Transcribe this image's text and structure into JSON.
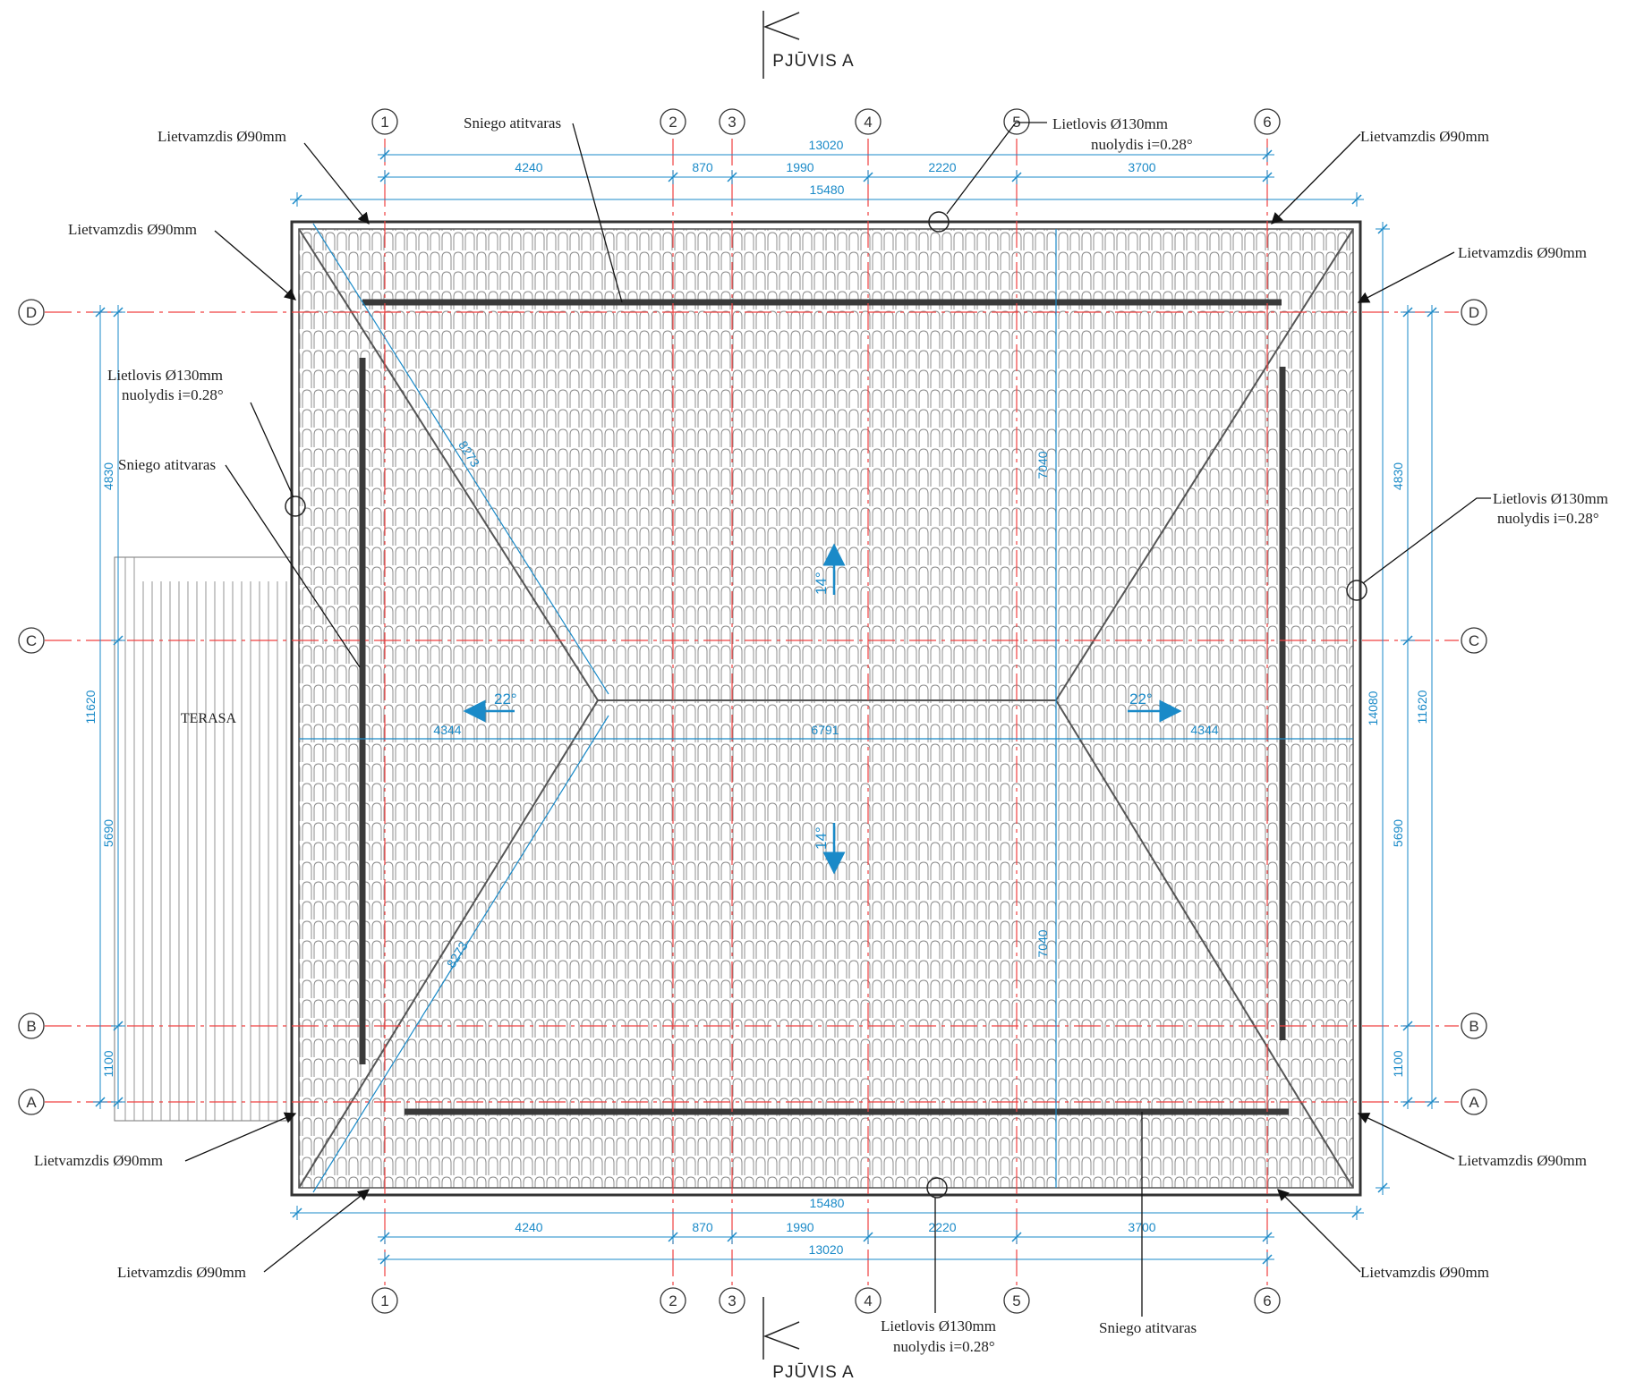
{
  "section_label": "PJŪVIS A",
  "grid_vertical": [
    "1",
    "2",
    "3",
    "4",
    "5",
    "6"
  ],
  "grid_horizontal": [
    "D",
    "C",
    "B",
    "A"
  ],
  "dims_top": {
    "overall": "13020",
    "outer": "15480",
    "segments": [
      "4240",
      "870",
      "1990",
      "2220",
      "3700"
    ]
  },
  "dims_bottom": {
    "overall": "13020",
    "outer": "15480",
    "segments": [
      "4240",
      "870",
      "1990",
      "2220",
      "3700"
    ]
  },
  "dims_left": {
    "segments": [
      "4830",
      "5690",
      "1100"
    ],
    "total": "11620"
  },
  "dims_right": {
    "segments": [
      "4830",
      "5690",
      "1100"
    ],
    "total": "11620",
    "outer": "14080"
  },
  "dims_interior": {
    "hip": "8273",
    "ridge_half": "7040",
    "ridge_len": "6791",
    "hip_run": "4344"
  },
  "slopes": {
    "main": "14°",
    "hip": "22°"
  },
  "terrace_label": "TERASA",
  "callouts": {
    "downpipe": "Lietvamzdis Ø90mm",
    "gutter_line1": "Lietlovis Ø130mm",
    "gutter_line2": "nuolydis i=0.28°",
    "snow_guard": "Sniego atitvaras"
  },
  "colors": {
    "grid": "#f04040",
    "dimension": "#1a8ac8",
    "linework": "#222222",
    "tile": "#9a9a9a"
  }
}
